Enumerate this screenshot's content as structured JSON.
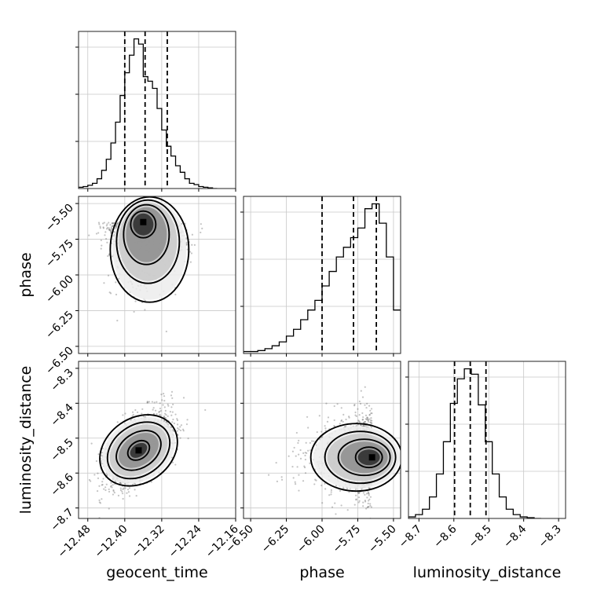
{
  "chart_data": {
    "type": "corner",
    "parameters": [
      "geocent_time",
      "phase",
      "luminosity_distance"
    ],
    "axis_labels": [
      "geocent_time",
      "phase",
      "luminosity_distance"
    ],
    "ranges": {
      "geocent_time": [
        -12.5,
        -12.16
      ],
      "phase": [
        -6.55,
        -5.45
      ],
      "luminosity_distance": [
        -8.73,
        -8.28
      ]
    },
    "ticks": {
      "geocent_time": {
        "values": [
          -12.48,
          -12.4,
          -12.32,
          -12.24,
          -12.16
        ],
        "labels": [
          "−12.48",
          "−12.40",
          "−12.32",
          "−12.24",
          "−12.16"
        ]
      },
      "phase": {
        "values": [
          -6.5,
          -6.25,
          -6.0,
          -5.75,
          -5.5
        ],
        "labels": [
          "−6.50",
          "−6.25",
          "−6.00",
          "−5.75",
          "−5.50"
        ]
      },
      "luminosity_distance": {
        "values": [
          -8.7,
          -8.6,
          -8.5,
          -8.4,
          -8.3
        ],
        "labels": [
          "−8.7",
          "−8.6",
          "−8.5",
          "−8.4",
          "−8.3"
        ]
      }
    },
    "grid": true,
    "quantiles": {
      "geocent_time": [
        -12.4,
        -12.356,
        -12.308
      ],
      "phase": [
        -6.0,
        -5.78,
        -5.62
      ],
      "luminosity_distance": [
        -8.598,
        -8.553,
        -8.508
      ]
    },
    "histograms": {
      "geocent_time": {
        "edges": [
          -12.5,
          -12.49,
          -12.48,
          -12.47,
          -12.46,
          -12.45,
          -12.44,
          -12.43,
          -12.42,
          -12.41,
          -12.4,
          -12.39,
          -12.38,
          -12.37,
          -12.36,
          -12.35,
          -12.34,
          -12.33,
          -12.32,
          -12.31,
          -12.3,
          -12.29,
          -12.28,
          -12.27,
          -12.26,
          -12.25,
          -12.24,
          -12.23,
          -12.22,
          -12.21,
          -12.2
        ],
        "counts": [
          2,
          3,
          5,
          8,
          15,
          28,
          45,
          70,
          102,
          143,
          178,
          205,
          230,
          222,
          172,
          165,
          154,
          123,
          90,
          65,
          50,
          35,
          25,
          15,
          8,
          6,
          3,
          2,
          1,
          0
        ]
      },
      "phase": {
        "edges": [
          -6.55,
          -6.5,
          -6.45,
          -6.4,
          -6.35,
          -6.3,
          -6.25,
          -6.2,
          -6.15,
          -6.1,
          -6.05,
          -6.0,
          -5.95,
          -5.9,
          -5.85,
          -5.8,
          -5.75,
          -5.7,
          -5.65,
          -5.6,
          -5.55,
          -5.5,
          -5.45
        ],
        "counts": [
          2,
          2,
          3,
          5,
          8,
          12,
          18,
          25,
          35,
          45,
          55,
          70,
          85,
          100,
          110,
          120,
          130,
          150,
          155,
          135,
          100,
          45
        ]
      },
      "luminosity_distance": {
        "edges": [
          -8.73,
          -8.71,
          -8.69,
          -8.67,
          -8.65,
          -8.63,
          -8.61,
          -8.59,
          -8.57,
          -8.55,
          -8.53,
          -8.51,
          -8.49,
          -8.47,
          -8.45,
          -8.43,
          -8.41,
          -8.39,
          -8.37,
          -8.35
        ],
        "counts": [
          2,
          5,
          12,
          28,
          58,
          100,
          150,
          182,
          195,
          188,
          148,
          100,
          58,
          28,
          12,
          5,
          2,
          1,
          0
        ]
      }
    },
    "joint": [
      {
        "x": "geocent_time",
        "y": "phase",
        "peak": [
          -12.36,
          -5.63
        ],
        "contour_levels": [
          0.118,
          0.393,
          0.675,
          0.864
        ]
      },
      {
        "x": "geocent_time",
        "y": "luminosity_distance",
        "peak": [
          -12.37,
          -8.535
        ],
        "contour_levels": [
          0.118,
          0.393,
          0.675,
          0.864
        ]
      },
      {
        "x": "phase",
        "y": "luminosity_distance",
        "peak": [
          -5.65,
          -8.555
        ],
        "contour_levels": [
          0.118,
          0.393,
          0.675,
          0.864
        ]
      }
    ]
  }
}
